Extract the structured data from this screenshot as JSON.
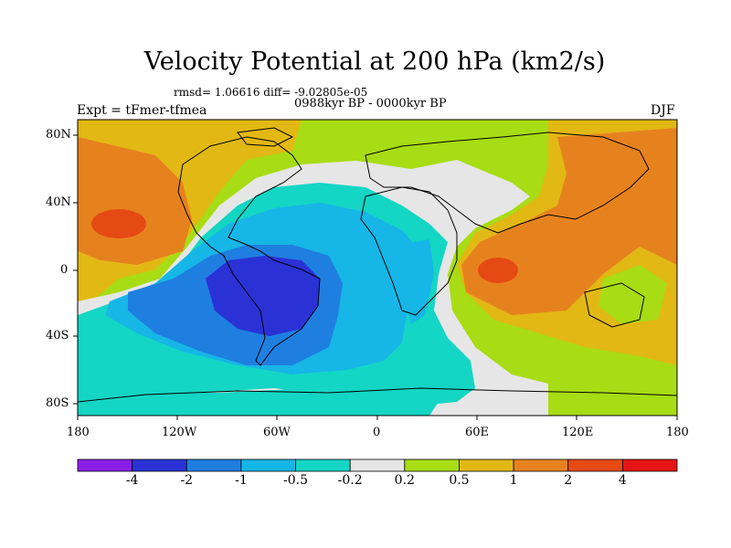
{
  "title": "Velocity Potential at 200 hPa (km2/s)",
  "stats_line": "rmsd= 1.06616  diff= -9.02805e-05",
  "period_line": "0988kyr BP - 0000kyr BP",
  "expt_line": "Expt = tFmer-tfmea",
  "season": "DJF",
  "lat_ticks": [
    "80N",
    "40N",
    "0",
    "40S",
    "80S"
  ],
  "lon_ticks": [
    "180",
    "120W",
    "60W",
    "0",
    "60E",
    "120E",
    "180"
  ],
  "colorbar": {
    "labels": [
      "-4",
      "-2",
      "-1",
      "-0.5",
      "-0.2",
      "0.2",
      "0.5",
      "1",
      "2",
      "4"
    ],
    "colors": [
      "#8a1ee6",
      "#2a32d6",
      "#1f7fe0",
      "#16b6e6",
      "#14d6c4",
      "#e6e6e6",
      "#a8dc14",
      "#e2b814",
      "#e6821e",
      "#e64a14",
      "#e61414"
    ]
  }
}
